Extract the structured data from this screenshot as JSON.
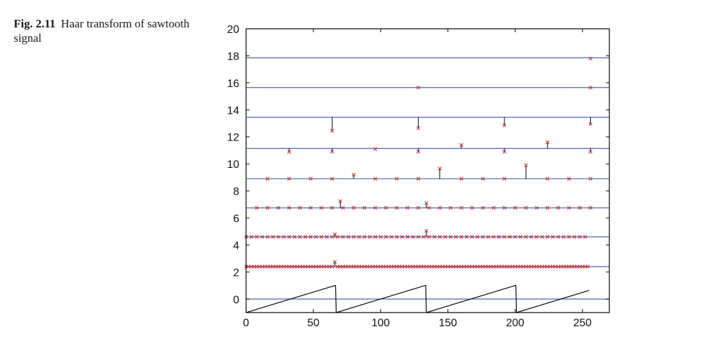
{
  "caption": {
    "label": "Fig. 2.11",
    "text": "Haar transform of sawtooth signal"
  },
  "colors": {
    "baseline": "#4a62b8",
    "marker": "#d03030",
    "stem": "#000000",
    "signal": "#000000",
    "axis": "#000000"
  },
  "chart_data": {
    "type": "scatter",
    "title": "",
    "xlabel": "",
    "ylabel": "",
    "xlim": [
      0,
      270
    ],
    "ylim": [
      -1,
      20
    ],
    "xticks": [
      0,
      50,
      100,
      150,
      200,
      250
    ],
    "yticks": [
      0,
      2,
      4,
      6,
      8,
      10,
      12,
      14,
      16,
      18,
      20
    ],
    "grid": false,
    "signal": {
      "period": 67,
      "segments": [
        {
          "x": [
            0,
            66
          ],
          "y": [
            -1,
            1
          ]
        },
        {
          "x": [
            67,
            133
          ],
          "y": [
            -1,
            1
          ]
        },
        {
          "x": [
            134,
            200
          ],
          "y": [
            -1,
            1
          ]
        },
        {
          "x": [
            201,
            255
          ],
          "y": [
            -1,
            0.64
          ]
        }
      ]
    },
    "levels": [
      {
        "baseline": 2.4,
        "step": 2,
        "x_start": 0,
        "x_end": 255,
        "outliers": [
          {
            "x": 66,
            "y": 2.75
          }
        ]
      },
      {
        "baseline": 4.6,
        "step": 4,
        "x_start": 0,
        "x_end": 255,
        "outliers": [
          {
            "x": 66,
            "y": 4.8
          },
          {
            "x": 134,
            "y": 5.05
          }
        ]
      },
      {
        "baseline": 6.75,
        "step": 8,
        "x_start": 8,
        "x_end": 256,
        "outliers": [
          {
            "x": 70,
            "y": 7.25
          },
          {
            "x": 134,
            "y": 7.1
          }
        ]
      },
      {
        "baseline": 8.9,
        "step": 16,
        "x_start": 16,
        "x_end": 256,
        "outliers": [
          {
            "x": 80,
            "y": 9.2
          },
          {
            "x": 144,
            "y": 9.65
          },
          {
            "x": 208,
            "y": 9.9
          }
        ]
      },
      {
        "baseline": 11.15,
        "step": 32,
        "x_start": 32,
        "x_end": 256,
        "outliers": [
          {
            "x": 32,
            "y": 10.9
          },
          {
            "x": 64,
            "y": 10.9
          },
          {
            "x": 96,
            "y": 11.1
          },
          {
            "x": 128,
            "y": 10.9
          },
          {
            "x": 160,
            "y": 11.4
          },
          {
            "x": 192,
            "y": 10.9
          },
          {
            "x": 224,
            "y": 11.6
          },
          {
            "x": 256,
            "y": 10.9
          }
        ]
      },
      {
        "baseline": 13.45,
        "step": 64,
        "x_start": 64,
        "x_end": 256,
        "outliers": [
          {
            "x": 64,
            "y": 12.45
          },
          {
            "x": 128,
            "y": 12.65
          },
          {
            "x": 192,
            "y": 12.85
          },
          {
            "x": 256,
            "y": 12.95
          }
        ]
      },
      {
        "baseline": 15.65,
        "step": 128,
        "x_start": 128,
        "x_end": 256,
        "outliers": [
          {
            "x": 128,
            "y": 15.65
          },
          {
            "x": 256,
            "y": 15.65
          }
        ]
      },
      {
        "baseline": 17.85,
        "step": 256,
        "x_start": 256,
        "x_end": 256,
        "outliers": [
          {
            "x": 256,
            "y": 17.8
          }
        ]
      }
    ]
  }
}
